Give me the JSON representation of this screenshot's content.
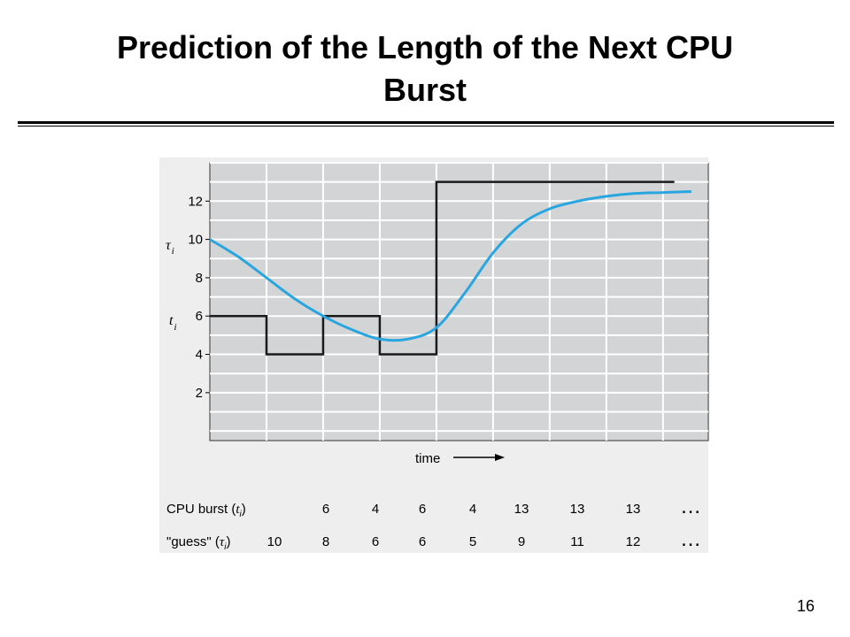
{
  "slide": {
    "title_line1": "Prediction of the Length of the Next CPU",
    "title_line2": "Burst",
    "number": "16"
  },
  "colors": {
    "plot_bg": "#d3d4d6",
    "grid": "#ffffff",
    "burst_line": "#1a1a1a",
    "guess_line": "#29a6e0"
  },
  "chart_data": {
    "type": "line",
    "y_ticks": [
      "2",
      "4",
      "6",
      "8",
      "10",
      "12"
    ],
    "ylim": [
      -0.5,
      14
    ],
    "xlim": [
      0,
      8.8
    ],
    "grid": true,
    "ylabel_tau": "τ",
    "ylabel_tau_sub": "i",
    "ylabel_t": "t",
    "ylabel_t_sub": "i",
    "xlabel": "time",
    "series": [
      {
        "key": "burst",
        "x": [
          0,
          1,
          1,
          2,
          2,
          3,
          3,
          4,
          4,
          8.2
        ],
        "y": [
          6,
          6,
          4,
          4,
          6,
          6,
          4,
          4,
          13,
          13
        ]
      },
      {
        "key": "guess",
        "x": [
          0,
          0.5,
          1,
          1.5,
          2,
          2.5,
          3,
          3.5,
          4,
          4.5,
          5,
          5.5,
          6,
          6.5,
          7,
          7.5,
          8,
          8.5
        ],
        "y": [
          10,
          9.1,
          8.0,
          6.9,
          6.0,
          5.3,
          4.8,
          4.8,
          5.4,
          7.2,
          9.3,
          10.8,
          11.6,
          12.0,
          12.25,
          12.4,
          12.45,
          12.5
        ]
      }
    ],
    "table": {
      "rows": [
        {
          "label": "CPU burst (",
          "label_sym": "t",
          "label_sub": "i",
          "label_end": ")",
          "values": [
            "6",
            "4",
            "6",
            "4",
            "13",
            "13",
            "13"
          ],
          "ellipsis": "…"
        },
        {
          "label": "\"guess\" (",
          "label_sym": "τ",
          "label_sub": "i",
          "label_end": ")",
          "values": [
            "10",
            "8",
            "6",
            "6",
            "5",
            "9",
            "11",
            "12"
          ],
          "ellipsis": "…"
        }
      ]
    }
  }
}
